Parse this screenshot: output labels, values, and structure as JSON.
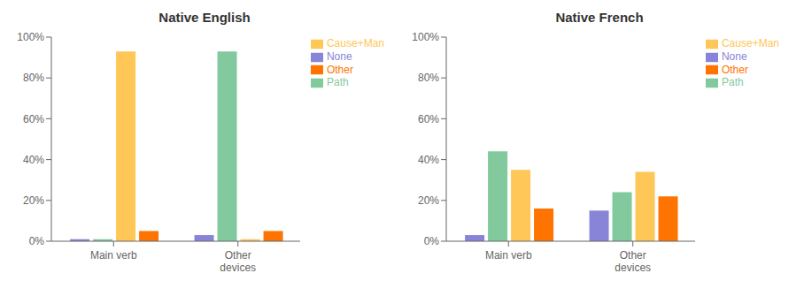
{
  "chart_data": [
    {
      "type": "bar",
      "title": "Native English",
      "categories": [
        "Main verb",
        "Other\ndevices"
      ],
      "series": [
        {
          "name": "None",
          "color": "#8884d8",
          "values": [
            1,
            3
          ]
        },
        {
          "name": "Path",
          "color": "#82ca9d",
          "values": [
            1,
            93
          ]
        },
        {
          "name": "Cause+Man",
          "color": "#ffc658",
          "values": [
            93,
            1
          ]
        },
        {
          "name": "Other",
          "color": "#ff7300",
          "values": [
            5,
            5
          ]
        }
      ],
      "ylim": [
        0,
        100
      ],
      "yticks": [
        {
          "value": 0,
          "label": "0%"
        },
        {
          "value": 20,
          "label": "20%"
        },
        {
          "value": 40,
          "label": "40%"
        },
        {
          "value": 60,
          "label": "60%"
        },
        {
          "value": 80,
          "label": "80%"
        },
        {
          "value": 100,
          "label": "100%"
        }
      ],
      "grid": false,
      "legend": "right"
    },
    {
      "type": "bar",
      "title": "Native French",
      "categories": [
        "Main verb",
        "Other\ndevices"
      ],
      "series": [
        {
          "name": "None",
          "color": "#8884d8",
          "values": [
            3,
            15
          ]
        },
        {
          "name": "Path",
          "color": "#82ca9d",
          "values": [
            44,
            24
          ]
        },
        {
          "name": "Cause+Man",
          "color": "#ffc658",
          "values": [
            35,
            34
          ]
        },
        {
          "name": "Other",
          "color": "#ff7300",
          "values": [
            16,
            22
          ]
        }
      ],
      "ylim": [
        0,
        100
      ],
      "yticks": [
        {
          "value": 0,
          "label": "0%"
        },
        {
          "value": 20,
          "label": "20%"
        },
        {
          "value": 40,
          "label": "40%"
        },
        {
          "value": 60,
          "label": "60%"
        },
        {
          "value": 80,
          "label": "80%"
        },
        {
          "value": 100,
          "label": "100%"
        }
      ],
      "grid": false,
      "legend": "right"
    }
  ]
}
